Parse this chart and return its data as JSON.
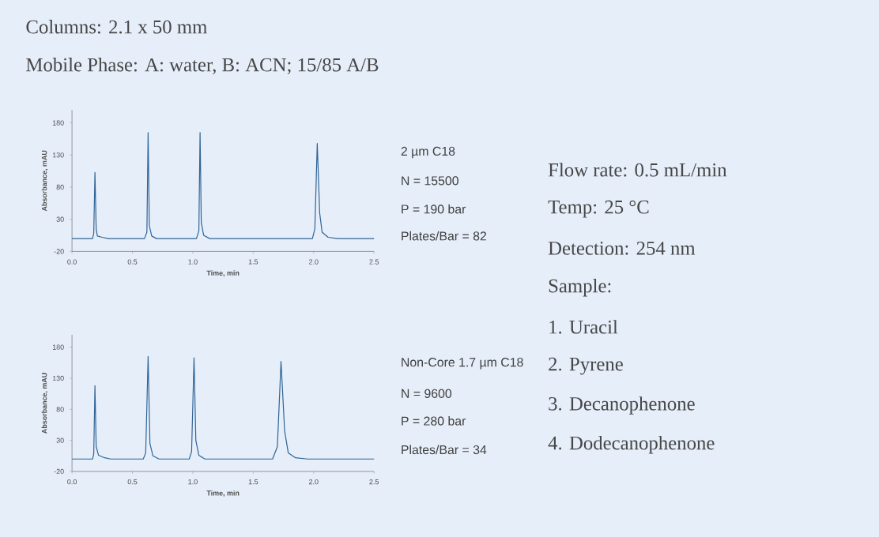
{
  "chart_data": [
    {
      "type": "other",
      "annotations": [
        "Columns: 2.1 x 50 mm",
        "Mobile Phase: A: water, B: ACN; 15/85 A/B"
      ]
    },
    {
      "type": "line",
      "xlabel": "Time, min",
      "ylabel": "Absorbance, mAU",
      "x": [
        0,
        0.17,
        0.18,
        0.19,
        0.2,
        0.21,
        0.25,
        0.3,
        0.6,
        0.62,
        0.63,
        0.64,
        0.66,
        0.7,
        1.03,
        1.05,
        1.06,
        1.07,
        1.09,
        1.14,
        1.99,
        2.01,
        2.03,
        2.05,
        2.07,
        2.12,
        2.2,
        2.5
      ],
      "series": [
        {
          "color": "#2f6496",
          "values": [
            0,
            0,
            8,
            103,
            15,
            4,
            2,
            0,
            0,
            10,
            165,
            20,
            4,
            0,
            0,
            12,
            165,
            25,
            5,
            0,
            0,
            15,
            148,
            40,
            10,
            2,
            0,
            0
          ]
        }
      ],
      "xlim": [
        0,
        2.5
      ],
      "ylim": [
        -20,
        200
      ],
      "xticks": [
        {
          "value": 0,
          "label": "0.0"
        },
        0.5,
        {
          "value": 1,
          "label": "1.0"
        },
        1.5,
        {
          "value": 2,
          "label": "2.0"
        },
        2.5
      ],
      "yticks": [
        -20,
        30,
        80,
        130,
        180
      ],
      "annotations": [
        "2 µm C18",
        "N = 15500",
        "P = 190 bar",
        "Plates/Bar = 82"
      ]
    },
    {
      "type": "line",
      "xlabel": "Time, min",
      "ylabel": "Absorbance, mAU",
      "x": [
        0,
        0.17,
        0.18,
        0.19,
        0.2,
        0.22,
        0.27,
        0.32,
        0.59,
        0.61,
        0.63,
        0.645,
        0.67,
        0.72,
        0.97,
        0.99,
        1.01,
        1.025,
        1.05,
        1.1,
        1.66,
        1.7,
        1.73,
        1.76,
        1.79,
        1.85,
        1.95,
        2.5
      ],
      "series": [
        {
          "color": "#2f6496",
          "values": [
            0,
            0,
            8,
            118,
            20,
            6,
            2,
            0,
            0,
            10,
            165,
            25,
            5,
            0,
            0,
            12,
            163,
            30,
            6,
            0,
            0,
            20,
            157,
            45,
            10,
            2,
            0,
            0
          ]
        }
      ],
      "xlim": [
        0,
        2.5
      ],
      "ylim": [
        -20,
        200
      ],
      "xticks": [
        {
          "value": 0,
          "label": "0.0"
        },
        0.5,
        {
          "value": 1,
          "label": "1.0"
        },
        1.5,
        {
          "value": 2,
          "label": "2.0"
        },
        2.5
      ],
      "yticks": [
        -20,
        30,
        80,
        130,
        180
      ],
      "annotations": [
        "Non-Core 1.7 µm C18",
        "N = 9600",
        "P = 280 bar",
        "Plates/Bar = 34"
      ]
    },
    {
      "type": "other",
      "annotations": [
        "Flow rate: 0.5 mL/min",
        "Temp: 25 °C",
        "Detection: 254 nm",
        "Sample:",
        "1.  Uracil",
        "2.  Pyrene",
        "3.  Decanophenone",
        "4.  Dodecanophenone"
      ]
    }
  ]
}
